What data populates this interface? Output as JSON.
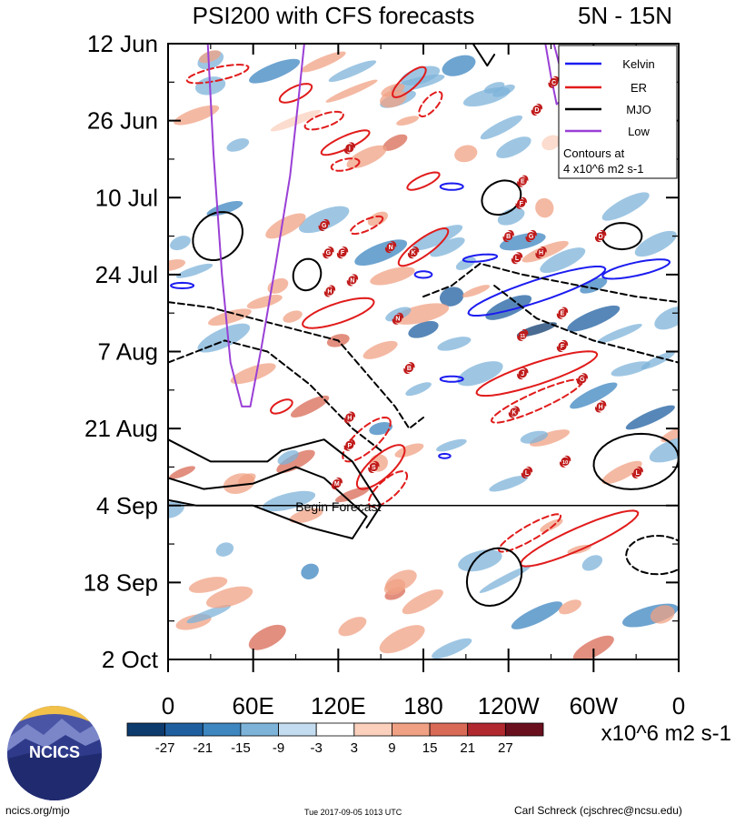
{
  "chart_data": {
    "type": "heatmap",
    "title": "PSI200 with CFS forecasts",
    "subtitle_right": "5N - 15N",
    "x_ticks": [
      "0",
      "60E",
      "120E",
      "180",
      "120W",
      "60W",
      "0"
    ],
    "x_tick_lon": [
      0,
      60,
      120,
      180,
      240,
      300,
      360
    ],
    "y_ticks": [
      "12 Jun",
      "26 Jun",
      "10 Jul",
      "24 Jul",
      "7 Aug",
      "21 Aug",
      "4 Sep",
      "18 Sep",
      "2 Oct"
    ],
    "y_tick_day": [
      0,
      14,
      28,
      42,
      56,
      70,
      84,
      98,
      112
    ],
    "xlim": [
      0,
      360
    ],
    "ylim_days": [
      0,
      112
    ],
    "forecast_start_day": 84,
    "forecast_label": "Begin Forecast",
    "colorbar": {
      "levels": [
        "-27",
        "-21",
        "-15",
        "-9",
        "-3",
        "3",
        "9",
        "15",
        "21",
        "27"
      ],
      "colors": [
        "#0d3b6e",
        "#1f5fa0",
        "#3e86c0",
        "#7db3d9",
        "#c3dcef",
        "#ffffff",
        "#fbd0bd",
        "#f0a184",
        "#d86a56",
        "#b1292e",
        "#6a0f1e"
      ],
      "units": "x10^6 m2 s-1"
    },
    "legend": {
      "entries": [
        {
          "name": "Kelvin",
          "color": "#1c1cf0"
        },
        {
          "name": "ER",
          "color": "#e11b1b"
        },
        {
          "name": "MJO",
          "color": "#000000"
        },
        {
          "name": "Low",
          "color": "#9a3fd6"
        }
      ],
      "note_line1": "Contours at",
      "note_line2": "4 x10^6 m2 s-1",
      "placement": "top-right"
    },
    "storms": [
      {
        "label": "C",
        "lon": 272,
        "day": 7
      },
      {
        "label": "D",
        "lon": 260,
        "day": 12
      },
      {
        "label": "E",
        "lon": 279,
        "day": 11
      },
      {
        "label": "I",
        "lon": 128,
        "day": 19
      },
      {
        "label": "E",
        "lon": 250,
        "day": 25
      },
      {
        "label": "F",
        "lon": 249,
        "day": 29
      },
      {
        "label": "G",
        "lon": 110,
        "day": 33
      },
      {
        "label": "B",
        "lon": 240,
        "day": 35
      },
      {
        "label": "G",
        "lon": 256,
        "day": 35
      },
      {
        "label": "D",
        "lon": 305,
        "day": 35
      },
      {
        "label": "G",
        "lon": 113,
        "day": 38
      },
      {
        "label": "F",
        "lon": 123,
        "day": 38
      },
      {
        "label": "N",
        "lon": 157,
        "day": 37
      },
      {
        "label": "K",
        "lon": 173,
        "day": 38
      },
      {
        "label": "H",
        "lon": 263,
        "day": 38
      },
      {
        "label": "L",
        "lon": 246,
        "day": 39
      },
      {
        "label": "N",
        "lon": 130,
        "day": 43
      },
      {
        "label": "H",
        "lon": 114,
        "day": 45
      },
      {
        "label": "E",
        "lon": 278,
        "day": 49
      },
      {
        "label": "N",
        "lon": 162,
        "day": 50
      },
      {
        "label": "11",
        "lon": 250,
        "day": 53
      },
      {
        "label": "F",
        "lon": 278,
        "day": 55
      },
      {
        "label": "B",
        "lon": 170,
        "day": 59
      },
      {
        "label": "J",
        "lon": 250,
        "day": 60
      },
      {
        "label": "G",
        "lon": 292,
        "day": 61
      },
      {
        "label": "H",
        "lon": 305,
        "day": 66
      },
      {
        "label": "K",
        "lon": 244,
        "day": 67
      },
      {
        "label": "H",
        "lon": 128,
        "day": 68
      },
      {
        "label": "P",
        "lon": 128,
        "day": 73
      },
      {
        "label": "S",
        "lon": 145,
        "day": 77
      },
      {
        "label": "10",
        "lon": 280,
        "day": 76
      },
      {
        "label": "L",
        "lon": 253,
        "day": 78
      },
      {
        "label": "L",
        "lon": 331,
        "day": 78
      },
      {
        "label": "M",
        "lon": 119,
        "day": 80
      }
    ]
  },
  "footer": {
    "left": "ncics.org/mjo",
    "center": "Tue 2017-09-05 1013 UTC",
    "right": "Carl Schreck (cjschrec@ncsu.edu)"
  },
  "logo": {
    "text": "NCICS"
  }
}
